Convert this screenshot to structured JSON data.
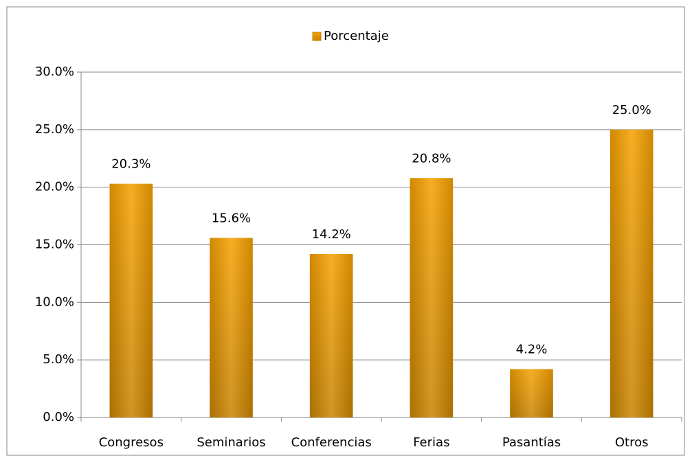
{
  "chart_data": {
    "type": "bar",
    "categories": [
      "Congresos",
      "Seminarios",
      "Conferencias",
      "Ferias",
      "Pasantías",
      "Otros"
    ],
    "series": [
      {
        "name": "Porcentaje",
        "color": "#f5a000",
        "values": [
          20.3,
          15.6,
          14.2,
          20.8,
          4.2,
          25.0
        ],
        "value_labels": [
          "20.3%",
          "15.6%",
          "14.2%",
          "20.8%",
          "4.2%",
          "25.0%"
        ]
      }
    ],
    "ylim": [
      0,
      30
    ],
    "yticks": [
      {
        "value": 0,
        "label": "0.0%"
      },
      {
        "value": 5,
        "label": "5.0%"
      },
      {
        "value": 10,
        "label": "10.0%"
      },
      {
        "value": 15,
        "label": "15.0%"
      },
      {
        "value": 20,
        "label": "20.0%"
      },
      {
        "value": 25,
        "label": "25.0%"
      },
      {
        "value": 30,
        "label": "30.0%"
      }
    ],
    "grid": true,
    "legend": "top"
  }
}
